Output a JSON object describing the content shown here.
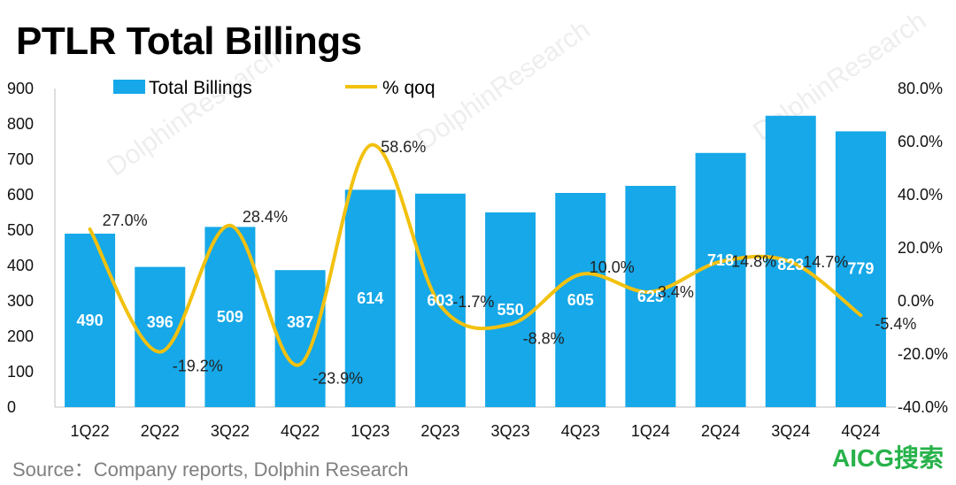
{
  "title": "PTLR Total Billings",
  "source": "Source：Company reports, Dolphin Research",
  "watermark": "DolphinResearch",
  "logo_text": "AICG搜索",
  "colors": {
    "bar": "#16a8e8",
    "line": "#f2c10f",
    "axis": "#bfbfbf"
  },
  "chart_data": {
    "type": "bar+line",
    "categories": [
      "1Q22",
      "2Q22",
      "3Q22",
      "4Q22",
      "1Q23",
      "2Q23",
      "3Q23",
      "4Q23",
      "1Q24",
      "2Q24",
      "3Q24",
      "4Q24"
    ],
    "series": [
      {
        "name": "Total Billings",
        "type": "bar",
        "axis": "left",
        "values": [
          490,
          396,
          509,
          387,
          614,
          603,
          550,
          605,
          625,
          718,
          823,
          779
        ],
        "labels": [
          "490",
          "396",
          "509",
          "387",
          "614",
          "603",
          "550",
          "605",
          "625",
          "718",
          "823",
          "779"
        ]
      },
      {
        "name": "% qoq",
        "type": "line",
        "axis": "right",
        "values": [
          27.0,
          -19.2,
          28.4,
          -23.9,
          58.6,
          -1.7,
          -8.8,
          10.0,
          3.4,
          14.8,
          14.7,
          -5.4
        ],
        "labels": [
          "27.0%",
          "-19.2%",
          "28.4%",
          "-23.9%",
          "58.6%",
          "-1.7%",
          "-8.8%",
          "10.0%",
          "3.4%",
          "14.8%",
          "14.7%",
          "-5.4%"
        ]
      }
    ],
    "y_left": {
      "min": 0,
      "max": 900,
      "step": 100,
      "ticks": [
        "0",
        "100",
        "200",
        "300",
        "400",
        "500",
        "600",
        "700",
        "800",
        "900"
      ]
    },
    "y_right": {
      "min": -40,
      "max": 80,
      "step": 20,
      "ticks": [
        "-40.0%",
        "-20.0%",
        "0.0%",
        "20.0%",
        "40.0%",
        "60.0%",
        "80.0%"
      ]
    },
    "legend": [
      "Total Billings",
      "% qoq"
    ],
    "legend_position": "top"
  }
}
